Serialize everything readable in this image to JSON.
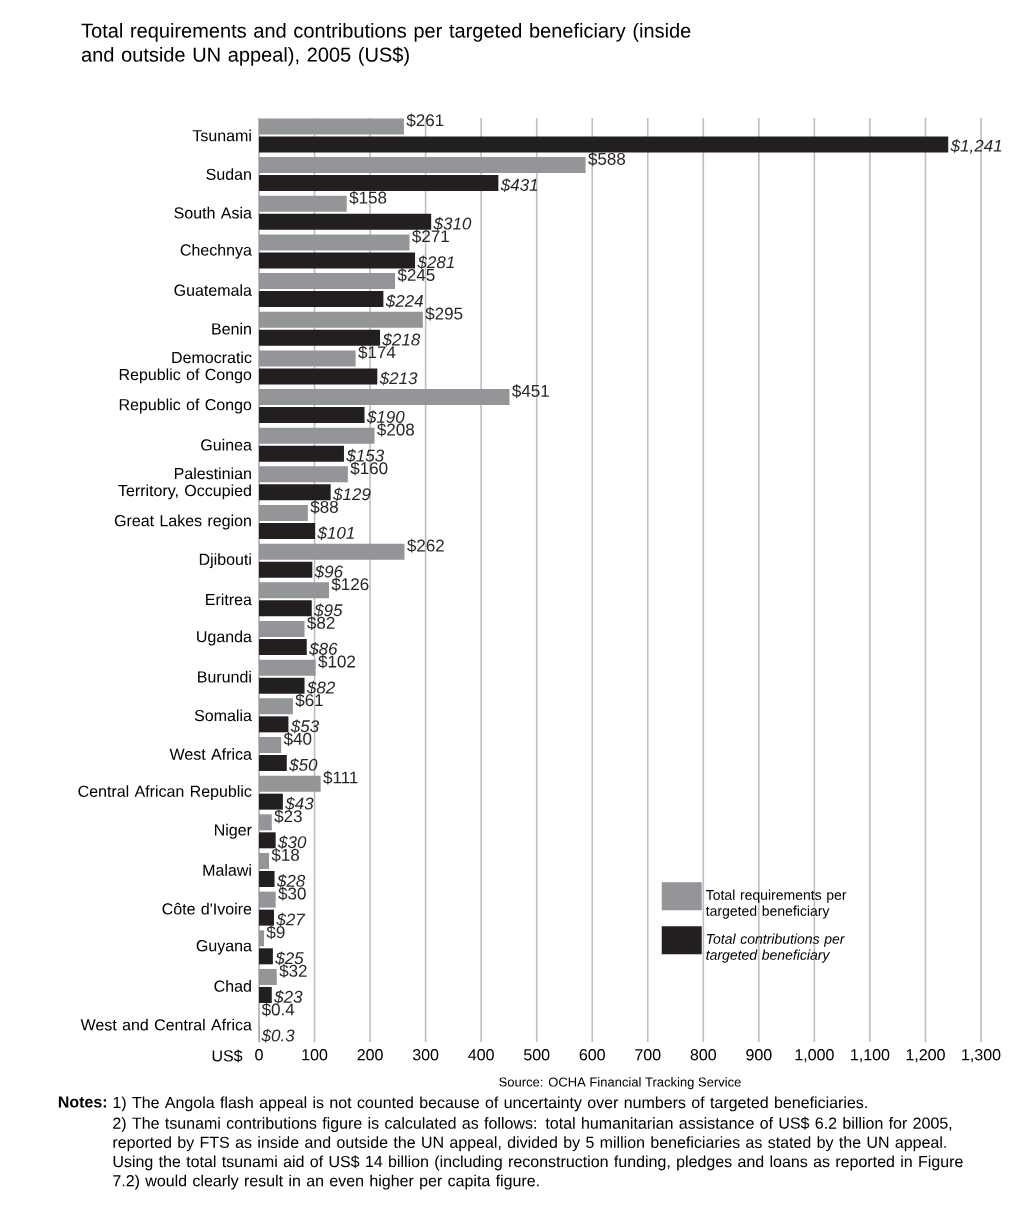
{
  "chart_data": {
    "type": "bar",
    "orientation": "horizontal",
    "title": "Total requirements and contributions per targeted beneficiary (inside and outside UN appeal), 2005 (US$)",
    "xlabel": "US$",
    "categories": [
      "Tsunami",
      "Sudan",
      "South Asia",
      "Chechnya",
      "Guatemala",
      "Benin",
      "Democratic Republic of Congo",
      "Republic of Congo",
      "Guinea",
      "Palestinian Territory, Occupied",
      "Great Lakes region",
      "Djibouti",
      "Eritrea",
      "Uganda",
      "Burundi",
      "Somalia",
      "West Africa",
      "Central African Republic",
      "Niger",
      "Malawi",
      "Côte d'Ivoire",
      "Guyana",
      "Chad",
      "West and Central Africa"
    ],
    "series": [
      {
        "name": "Total requirements per targeted beneficiary",
        "color": "#939598",
        "values": [
          261,
          588,
          158,
          271,
          245,
          295,
          174,
          451,
          208,
          160,
          88,
          262,
          126,
          82,
          102,
          61,
          40,
          111,
          23,
          18,
          30,
          9,
          32,
          0.4
        ],
        "value_labels": [
          "$261",
          "$588",
          "$158",
          "$271",
          "$245",
          "$295",
          "$174",
          "$451",
          "$208",
          "$160",
          "$88",
          "$262",
          "$126",
          "$82",
          "$102",
          "$61",
          "$40",
          "$111",
          "$23",
          "$18",
          "$30",
          "$9",
          "$32",
          "$0.4"
        ]
      },
      {
        "name": "Total contributions per targeted beneficiary",
        "color": "#231f20",
        "values": [
          1241,
          431,
          310,
          281,
          224,
          218,
          213,
          190,
          153,
          129,
          101,
          96,
          95,
          86,
          82,
          53,
          50,
          43,
          30,
          28,
          27,
          25,
          23,
          0.3
        ],
        "value_labels": [
          "$1,241",
          "$431",
          "$310",
          "$281",
          "$224",
          "$218",
          "$213",
          "$190",
          "$153",
          "$129",
          "$101",
          "$96",
          "$95",
          "$86",
          "$82",
          "$53",
          "$50",
          "$43",
          "$30",
          "$28",
          "$27",
          "$25",
          "$23",
          "$0.3"
        ]
      }
    ],
    "xlim": [
      0,
      1300
    ],
    "xticks": [
      0,
      100,
      200,
      300,
      400,
      500,
      600,
      700,
      800,
      900,
      {
        "value": 1000,
        "label": "1,000"
      },
      {
        "value": 1100,
        "label": "1,100"
      },
      {
        "value": 1200,
        "label": "1,200"
      },
      {
        "value": 1300,
        "label": "1,300"
      }
    ],
    "grid": "x",
    "legend": "bottom right",
    "annotations": [
      "Source: OCHA Financial Tracking Service",
      "Notes:",
      "1) The Angola flash appeal is not counted because of uncertainty over numbers of targeted beneficiaries.",
      "2) The tsunami contributions figure is calculated as follows: total humanitarian assistance of US$ 6.2 billion for 2005, reported by FTS as inside and outside the UN appeal, divided by 5 million beneficiaries as stated by the UN appeal. Using the total tsunami aid of US$ 14 billion (including reconstruction funding, pledges and loans as reported in Figure 7.2) would clearly result in an even higher per capita figure."
    ]
  }
}
